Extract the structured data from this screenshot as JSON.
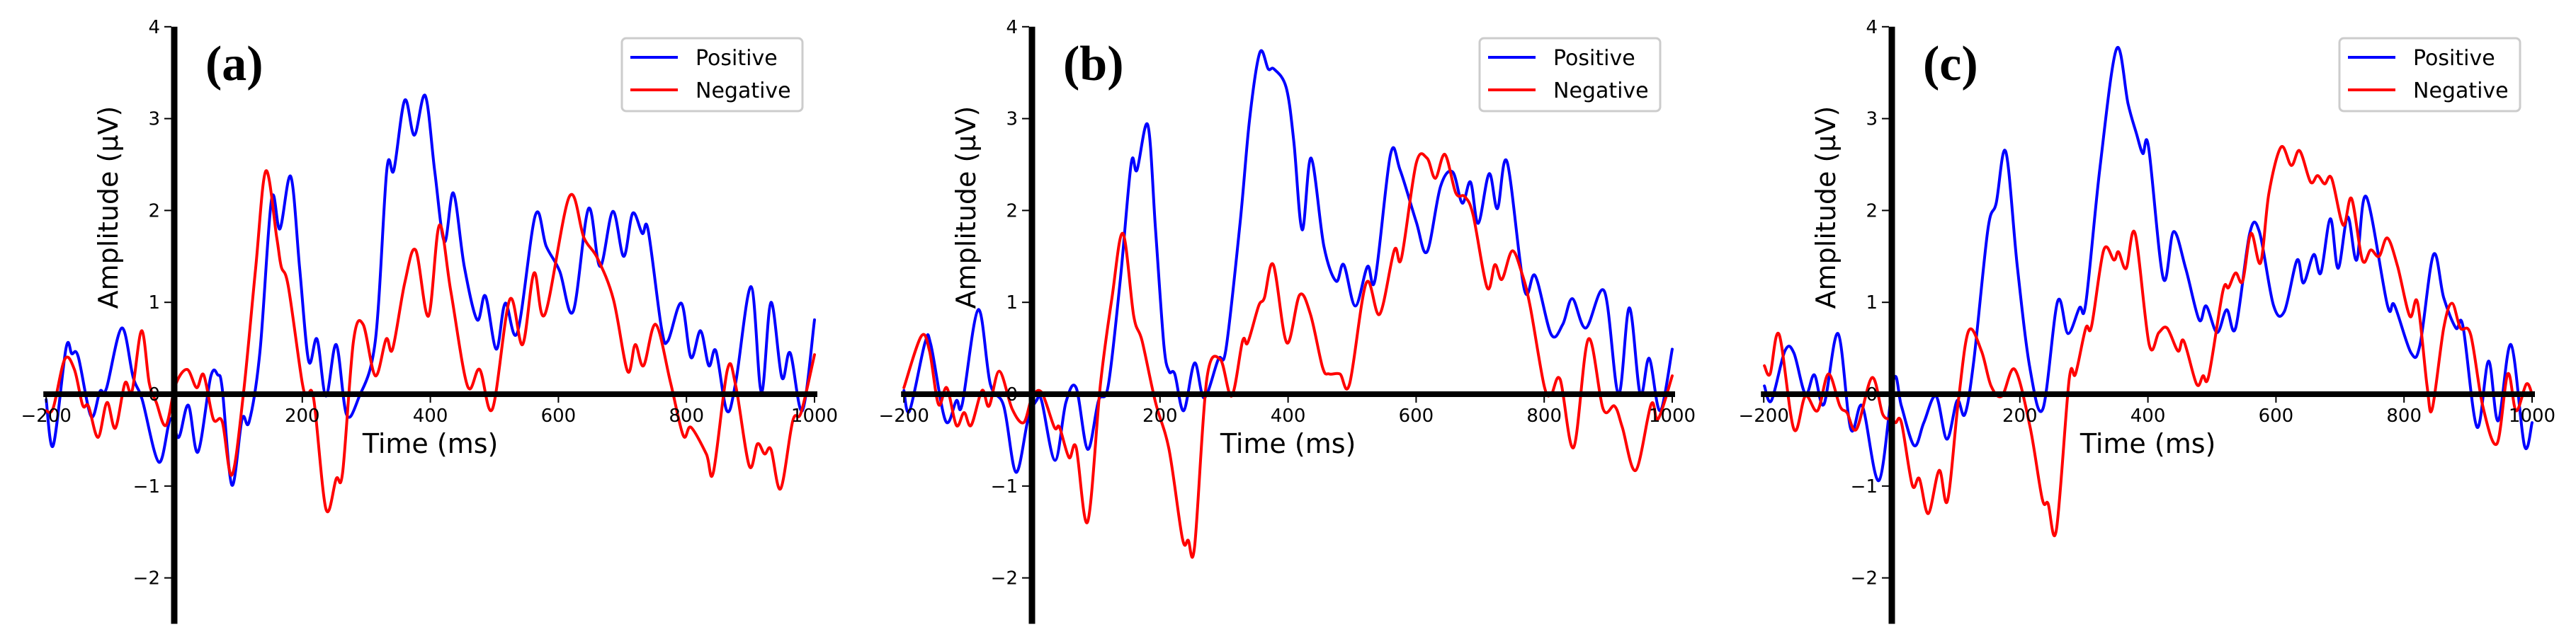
{
  "chart_data": [
    {
      "type": "line",
      "panel_label": "(a)",
      "xlabel": "Time (ms)",
      "ylabel": "Amplitude (μV)",
      "xlim": [
        -200,
        1000
      ],
      "ylim": [
        -2.5,
        4
      ],
      "xticks": [
        -200,
        0,
        200,
        400,
        600,
        800,
        1000
      ],
      "xtick_labels": [
        "−200",
        "0",
        "200",
        "400",
        "600",
        "800",
        "1000"
      ],
      "yticks": [
        -2,
        -1,
        0,
        1,
        2,
        3,
        4
      ],
      "ytick_labels": [
        "−2",
        "−1",
        "0",
        "1",
        "2",
        "3",
        "4"
      ],
      "grid": false,
      "legend_position": "upper-right",
      "series": [
        {
          "name": "Positive",
          "color": "#0000ff",
          "x": [
            -200,
            -189,
            -169,
            -160,
            -150,
            -130,
            -116,
            -106,
            -82,
            -64,
            -50,
            -24,
            -6,
            7,
            22,
            37,
            57,
            68,
            75,
            90,
            106,
            117,
            134,
            152,
            165,
            182,
            196,
            210,
            223,
            237,
            253,
            269,
            288,
            314,
            332,
            343,
            360,
            375,
            392,
            407,
            422,
            436,
            453,
            473,
            486,
            503,
            517,
            536,
            564,
            581,
            602,
            623,
            647,
            665,
            685,
            702,
            716,
            731,
            740,
            761,
            771,
            792,
            807,
            822,
            835,
            846,
            863,
            877,
            901,
            917,
            932,
            949,
            962,
            981,
            1000
          ],
          "y": [
            -0.06,
            -0.56,
            0.5,
            0.44,
            0.41,
            -0.24,
            0.03,
            0.06,
            0.72,
            0.18,
            -0.06,
            -0.74,
            -0.27,
            -0.47,
            -0.12,
            -0.63,
            0.19,
            0.21,
            0.06,
            -0.99,
            -0.27,
            -0.3,
            0.47,
            2.12,
            1.8,
            2.37,
            1.36,
            0.36,
            0.6,
            -0.02,
            0.54,
            -0.22,
            -0.04,
            0.58,
            2.44,
            2.44,
            3.2,
            2.82,
            3.25,
            2.42,
            1.66,
            2.19,
            1.39,
            0.81,
            1.07,
            0.49,
            0.99,
            0.67,
            1.95,
            1.61,
            1.34,
            0.9,
            2.02,
            1.39,
            1.99,
            1.5,
            1.97,
            1.75,
            1.79,
            0.72,
            0.58,
            0.99,
            0.4,
            0.69,
            0.31,
            0.47,
            -0.18,
            0.13,
            1.17,
            0.02,
            1.0,
            0.18,
            0.45,
            -0.18,
            0.81
          ]
        },
        {
          "name": "Negative",
          "color": "#ff0000",
          "x": [
            -200,
            -189,
            -171,
            -156,
            -143,
            -134,
            -119,
            -105,
            -92,
            -77,
            -66,
            -51,
            -39,
            -28,
            -13,
            2,
            20,
            35,
            46,
            61,
            75,
            90,
            108,
            127,
            143,
            160,
            167,
            178,
            200,
            208,
            218,
            237,
            253,
            263,
            280,
            295,
            314,
            331,
            341,
            360,
            377,
            397,
            414,
            432,
            458,
            477,
            497,
            524,
            544,
            562,
            579,
            617,
            640,
            661,
            686,
            708,
            720,
            733,
            752,
            775,
            795,
            807,
            831,
            842,
            864,
            877,
            898,
            911,
            922,
            932,
            947,
            966,
            979,
            1000
          ],
          "y": [
            -0.18,
            -0.15,
            0.38,
            0.27,
            -0.12,
            -0.13,
            -0.47,
            -0.09,
            -0.37,
            0.12,
            0.03,
            0.69,
            0.12,
            -0.09,
            -0.34,
            0.1,
            0.27,
            0.07,
            0.21,
            -0.27,
            -0.3,
            -0.88,
            0,
            1.36,
            2.43,
            1.71,
            1.39,
            1.18,
            0.12,
            0,
            -0.06,
            -1.25,
            -0.92,
            -0.85,
            0.58,
            0.76,
            0.2,
            0.6,
            0.49,
            1.21,
            1.57,
            0.85,
            1.84,
            1.12,
            0.09,
            0.27,
            -0.16,
            1.03,
            0.54,
            1.32,
            0.87,
            2.15,
            1.7,
            1.48,
            1.03,
            0.25,
            0.54,
            0.31,
            0.76,
            0.13,
            -0.45,
            -0.36,
            -0.65,
            -0.85,
            0.27,
            0.09,
            -0.78,
            -0.54,
            -0.65,
            -0.6,
            -1.03,
            -0.29,
            -0.2,
            0.43
          ]
        }
      ]
    },
    {
      "type": "line",
      "panel_label": "(b)",
      "xlabel": "Time (ms)",
      "ylabel": "Amplitude (μV)",
      "xlim": [
        -200,
        1000
      ],
      "ylim": [
        -2.5,
        4
      ],
      "xticks": [
        -200,
        0,
        200,
        400,
        600,
        800,
        1000
      ],
      "xtick_labels": [
        "−200",
        "0",
        "200",
        "400",
        "600",
        "800",
        "1000"
      ],
      "yticks": [
        -2,
        -1,
        0,
        1,
        2,
        3,
        4
      ],
      "ytick_labels": [
        "−2",
        "−1",
        "0",
        "1",
        "2",
        "3",
        "4"
      ],
      "grid": false,
      "legend_position": "upper-right",
      "series": [
        {
          "name": "Positive",
          "color": "#0000ff",
          "x": [
            -200,
            -191,
            -167,
            -158,
            -135,
            -118,
            -109,
            -84,
            -65,
            -44,
            -25,
            -6,
            7,
            15,
            36,
            53,
            69,
            87,
            104,
            119,
            138,
            155,
            164,
            181,
            193,
            206,
            214,
            223,
            237,
            254,
            269,
            291,
            303,
            325,
            340,
            356,
            369,
            378,
            397,
            409,
            422,
            436,
            456,
            475,
            487,
            505,
            524,
            536,
            560,
            575,
            600,
            617,
            638,
            657,
            672,
            685,
            697,
            714,
            727,
            742,
            769,
            786,
            811,
            829,
            844,
            865,
            894,
            916,
            933,
            950,
            964,
            981,
            1000
          ],
          "y": [
            0.04,
            -0.18,
            0.56,
            0.54,
            -0.29,
            -0.07,
            -0.11,
            0.92,
            0.11,
            -0.13,
            -0.85,
            -0.27,
            -0.07,
            -0.07,
            -0.72,
            -0.09,
            0.07,
            -0.6,
            -0.07,
            0.09,
            1.25,
            2.51,
            2.44,
            2.93,
            1.79,
            0.54,
            0.25,
            0.22,
            -0.18,
            0.34,
            -0.04,
            0.38,
            0.49,
            1.86,
            3.0,
            3.72,
            3.54,
            3.54,
            3.34,
            2.75,
            1.79,
            2.57,
            1.61,
            1.23,
            1.41,
            0.96,
            1.39,
            1.25,
            2.61,
            2.44,
            1.88,
            1.55,
            2.26,
            2.42,
            2.08,
            2.31,
            1.86,
            2.4,
            2.02,
            2.53,
            1.14,
            1.29,
            0.65,
            0.76,
            1.04,
            0.72,
            1.12,
            0,
            0.94,
            0,
            0.39,
            -0.18,
            0.49
          ]
        },
        {
          "name": "Negative",
          "color": "#ff0000",
          "x": [
            -200,
            -173,
            -160,
            -146,
            -133,
            -118,
            -106,
            -95,
            -78,
            -67,
            -51,
            -31,
            -13,
            0,
            15,
            35,
            43,
            58,
            69,
            87,
            107,
            125,
            142,
            159,
            172,
            193,
            214,
            235,
            244,
            254,
            273,
            294,
            312,
            329,
            337,
            354,
            363,
            377,
            398,
            418,
            435,
            454,
            464,
            481,
            496,
            522,
            543,
            566,
            577,
            600,
            617,
            630,
            645,
            662,
            676,
            689,
            711,
            723,
            734,
            750,
            765,
            778,
            800,
            811,
            825,
            846,
            869,
            892,
            910,
            922,
            943,
            967,
            978,
            1000
          ],
          "y": [
            0.07,
            0.63,
            0.47,
            -0.11,
            0.07,
            -0.34,
            -0.2,
            -0.34,
            0.04,
            -0.13,
            0.25,
            -0.16,
            -0.31,
            -0.04,
            0.02,
            -0.36,
            -0.36,
            -0.69,
            -0.58,
            -1.39,
            0.11,
            1.05,
            1.75,
            0.85,
            0.58,
            -0.09,
            -0.6,
            -1.57,
            -1.59,
            -1.66,
            0.16,
            0.38,
            -0.02,
            0.58,
            0.56,
            0.96,
            1.05,
            1.41,
            0.56,
            1.08,
            0.87,
            0.29,
            0.22,
            0.22,
            0.11,
            1.21,
            0.87,
            1.57,
            1.48,
            2.51,
            2.57,
            2.35,
            2.61,
            2.19,
            2.15,
            1.95,
            1.16,
            1.41,
            1.25,
            1.56,
            1.32,
            0.96,
            0.09,
            0,
            0.16,
            -0.58,
            0.6,
            -0.16,
            -0.13,
            -0.36,
            -0.83,
            -0.11,
            -0.27,
            0.2
          ]
        }
      ]
    },
    {
      "type": "line",
      "panel_label": "(c)",
      "xlabel": "Time (ms)",
      "ylabel": "Amplitude (μV)",
      "xlim": [
        -200,
        1000
      ],
      "ylim": [
        -2.5,
        4
      ],
      "xticks": [
        -200,
        0,
        200,
        400,
        600,
        800,
        1000
      ],
      "xtick_labels": [
        "−200",
        "0",
        "200",
        "400",
        "600",
        "800",
        "1000"
      ],
      "yticks": [
        -2,
        -1,
        0,
        1,
        2,
        3,
        4
      ],
      "ytick_labels": [
        "−2",
        "−1",
        "0",
        "1",
        "2",
        "3",
        "4"
      ],
      "grid": false,
      "legend_position": "upper-right",
      "series": [
        {
          "name": "Positive",
          "color": "#0000ff",
          "x": [
            -199,
            -188,
            -167,
            -153,
            -135,
            -121,
            -106,
            -84,
            -64,
            -46,
            -20,
            3,
            15,
            35,
            50,
            69,
            86,
            102,
            114,
            128,
            150,
            163,
            178,
            196,
            216,
            236,
            259,
            275,
            293,
            303,
            325,
            351,
            369,
            382,
            392,
            401,
            424,
            440,
            459,
            480,
            491,
            508,
            523,
            537,
            559,
            574,
            596,
            613,
            633,
            643,
            659,
            670,
            685,
            697,
            712,
            726,
            741,
            774,
            785,
            811,
            825,
            846,
            862,
            881,
            892,
            914,
            932,
            947,
            967,
            988,
            1000
          ],
          "y": [
            0.09,
            -0.07,
            0.47,
            0.45,
            0,
            0.21,
            -0.11,
            0.66,
            -0.38,
            -0.13,
            -0.94,
            0.16,
            -0.13,
            -0.56,
            -0.31,
            -0.02,
            -0.49,
            -0.07,
            -0.22,
            0.36,
            1.79,
            2.08,
            2.64,
            1.39,
            0.27,
            -0.16,
            1.01,
            0.66,
            0.94,
            0.99,
            2.46,
            3.76,
            3.16,
            2.84,
            2.62,
            2.69,
            1.26,
            1.77,
            1.37,
            0.81,
            0.96,
            0.67,
            0.92,
            0.72,
            1.75,
            1.77,
            0.97,
            0.9,
            1.46,
            1.21,
            1.52,
            1.32,
            1.91,
            1.37,
            1.93,
            1.46,
            2.15,
            0.97,
            0.97,
            0.45,
            0.54,
            1.52,
            1.05,
            0.72,
            0.74,
            -0.36,
            0.36,
            -0.29,
            0.54,
            -0.56,
            -0.31
          ]
        },
        {
          "name": "Negative",
          "color": "#ff0000",
          "x": [
            -199,
            -190,
            -176,
            -153,
            -135,
            -116,
            -99,
            -81,
            -70,
            -55,
            -31,
            -14,
            0,
            6,
            15,
            32,
            43,
            57,
            74,
            87,
            104,
            120,
            140,
            155,
            172,
            192,
            216,
            235,
            244,
            257,
            277,
            287,
            303,
            312,
            331,
            347,
            354,
            366,
            380,
            402,
            417,
            430,
            447,
            456,
            476,
            486,
            495,
            517,
            526,
            537,
            548,
            561,
            576,
            589,
            608,
            624,
            637,
            654,
            665,
            676,
            687,
            705,
            718,
            735,
            748,
            761,
            774,
            790,
            809,
            821,
            836,
            844,
            862,
            875,
            888,
            904,
            923,
            945,
            962,
            975,
            991,
            1000
          ],
          "y": [
            0.31,
            0.22,
            0.65,
            -0.38,
            -0.02,
            -0.18,
            0.22,
            -0.13,
            -0.2,
            -0.38,
            0.18,
            -0.22,
            -0.27,
            -0.31,
            -0.31,
            -0.99,
            -0.92,
            -1.3,
            -0.83,
            -1.16,
            -0.07,
            0.69,
            0.47,
            0.09,
            -0.02,
            0.27,
            -0.36,
            -1.14,
            -1.19,
            -1.48,
            0.16,
            0.22,
            0.72,
            0.74,
            1.57,
            1.46,
            1.55,
            1.37,
            1.75,
            0.54,
            0.67,
            0.72,
            0.47,
            0.58,
            0.11,
            0.2,
            0.2,
            1.12,
            1.16,
            1.32,
            1.23,
            1.75,
            1.43,
            2.19,
            2.69,
            2.49,
            2.65,
            2.31,
            2.38,
            2.29,
            2.35,
            1.84,
            2.13,
            1.46,
            1.57,
            1.5,
            1.7,
            1.39,
            0.85,
            1.0,
            0.09,
            -0.16,
            0.72,
            0.99,
            0.72,
            0.65,
            -0.13,
            -0.54,
            0.22,
            -0.18,
            0.11,
            0
          ]
        }
      ]
    }
  ]
}
